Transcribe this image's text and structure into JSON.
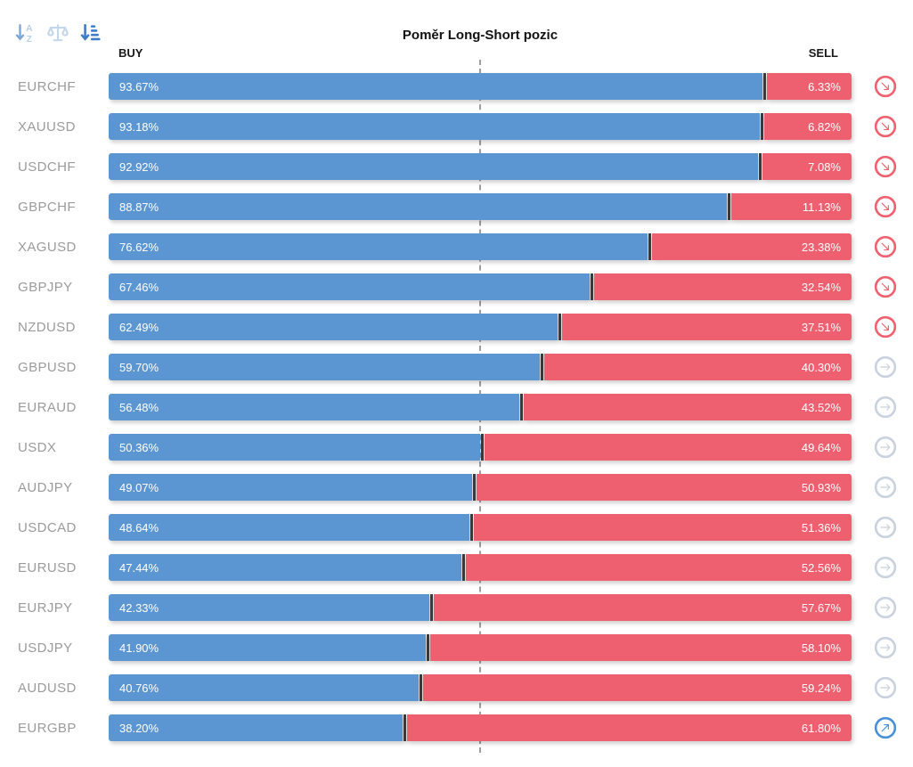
{
  "title": "Poměr Long-Short pozic",
  "columns": {
    "buy": "BUY",
    "sell": "SELL"
  },
  "toolbar": {
    "icons": [
      {
        "name": "sort-alphabetical-icon",
        "active": false
      },
      {
        "name": "balance-scale-icon",
        "active": false
      },
      {
        "name": "sort-amount-desc-icon",
        "active": true
      }
    ]
  },
  "colors": {
    "buy_bar": "#5b96d2",
    "sell_bar": "#ee5f6f",
    "bar_divider": "#3a3a3a",
    "pair_label": "#9b9b9b",
    "center_line": "#9e9e9e",
    "signal_down": "#f1606e",
    "signal_flat": "#c9d2de",
    "signal_up": "#4a90d8",
    "toolbar_active": "#3d7cc9",
    "toolbar_inactive": "#b9cfe7",
    "toolbar_mid": "#7da7d4"
  },
  "rows": [
    {
      "pair": "EURCHF",
      "buy": 93.67,
      "sell": 6.33,
      "buy_label": "93.67%",
      "sell_label": "6.33%",
      "signal": "down"
    },
    {
      "pair": "XAUUSD",
      "buy": 93.18,
      "sell": 6.82,
      "buy_label": "93.18%",
      "sell_label": "6.82%",
      "signal": "down"
    },
    {
      "pair": "USDCHF",
      "buy": 92.92,
      "sell": 7.08,
      "buy_label": "92.92%",
      "sell_label": "7.08%",
      "signal": "down"
    },
    {
      "pair": "GBPCHF",
      "buy": 88.87,
      "sell": 11.13,
      "buy_label": "88.87%",
      "sell_label": "11.13%",
      "signal": "down"
    },
    {
      "pair": "XAGUSD",
      "buy": 76.62,
      "sell": 23.38,
      "buy_label": "76.62%",
      "sell_label": "23.38%",
      "signal": "down"
    },
    {
      "pair": "GBPJPY",
      "buy": 67.46,
      "sell": 32.54,
      "buy_label": "67.46%",
      "sell_label": "32.54%",
      "signal": "down"
    },
    {
      "pair": "NZDUSD",
      "buy": 62.49,
      "sell": 37.51,
      "buy_label": "62.49%",
      "sell_label": "37.51%",
      "signal": "down"
    },
    {
      "pair": "GBPUSD",
      "buy": 59.7,
      "sell": 40.3,
      "buy_label": "59.70%",
      "sell_label": "40.30%",
      "signal": "flat"
    },
    {
      "pair": "EURAUD",
      "buy": 56.48,
      "sell": 43.52,
      "buy_label": "56.48%",
      "sell_label": "43.52%",
      "signal": "flat"
    },
    {
      "pair": "USDX",
      "buy": 50.36,
      "sell": 49.64,
      "buy_label": "50.36%",
      "sell_label": "49.64%",
      "signal": "flat"
    },
    {
      "pair": "AUDJPY",
      "buy": 49.07,
      "sell": 50.93,
      "buy_label": "49.07%",
      "sell_label": "50.93%",
      "signal": "flat"
    },
    {
      "pair": "USDCAD",
      "buy": 48.64,
      "sell": 51.36,
      "buy_label": "48.64%",
      "sell_label": "51.36%",
      "signal": "flat"
    },
    {
      "pair": "EURUSD",
      "buy": 47.44,
      "sell": 52.56,
      "buy_label": "47.44%",
      "sell_label": "52.56%",
      "signal": "flat"
    },
    {
      "pair": "EURJPY",
      "buy": 42.33,
      "sell": 57.67,
      "buy_label": "42.33%",
      "sell_label": "57.67%",
      "signal": "flat"
    },
    {
      "pair": "USDJPY",
      "buy": 41.9,
      "sell": 58.1,
      "buy_label": "41.90%",
      "sell_label": "58.10%",
      "signal": "flat"
    },
    {
      "pair": "AUDUSD",
      "buy": 40.76,
      "sell": 59.24,
      "buy_label": "40.76%",
      "sell_label": "59.24%",
      "signal": "flat"
    },
    {
      "pair": "EURGBP",
      "buy": 38.2,
      "sell": 61.8,
      "buy_label": "38.20%",
      "sell_label": "61.80%",
      "signal": "up"
    }
  ],
  "chart_data": {
    "type": "bar",
    "orientation": "horizontal-stacked",
    "title": "Poměr Long-Short pozic",
    "categories": [
      "EURCHF",
      "XAUUSD",
      "USDCHF",
      "GBPCHF",
      "XAGUSD",
      "GBPJPY",
      "NZDUSD",
      "GBPUSD",
      "EURAUD",
      "USDX",
      "AUDJPY",
      "USDCAD",
      "EURUSD",
      "EURJPY",
      "USDJPY",
      "AUDUSD",
      "EURGBP"
    ],
    "series": [
      {
        "name": "BUY",
        "values": [
          93.67,
          93.18,
          92.92,
          88.87,
          76.62,
          67.46,
          62.49,
          59.7,
          56.48,
          50.36,
          49.07,
          48.64,
          47.44,
          42.33,
          41.9,
          40.76,
          38.2
        ]
      },
      {
        "name": "SELL",
        "values": [
          6.33,
          6.82,
          7.08,
          11.13,
          23.38,
          32.54,
          37.51,
          40.3,
          43.52,
          49.64,
          50.93,
          51.36,
          52.56,
          57.67,
          58.1,
          59.24,
          61.8
        ]
      }
    ],
    "signals": [
      "down",
      "down",
      "down",
      "down",
      "down",
      "down",
      "down",
      "flat",
      "flat",
      "flat",
      "flat",
      "flat",
      "flat",
      "flat",
      "flat",
      "flat",
      "up"
    ],
    "unit": "%",
    "xlim": [
      0,
      100
    ],
    "grid": false,
    "legend_position": "top-as-column-headers",
    "annotations": [
      "dashed vertical line at 50%"
    ]
  }
}
